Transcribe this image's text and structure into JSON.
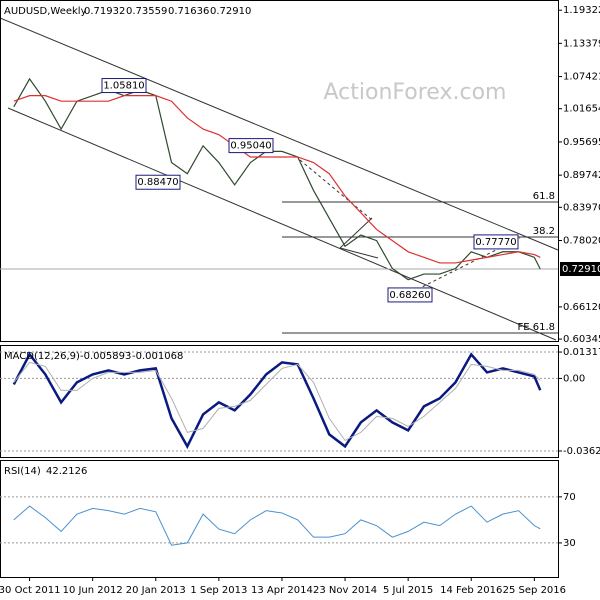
{
  "chart_data": [
    {
      "type": "line",
      "title": "AUDUSD,Weekly",
      "header_values": [
        0.71932,
        0.73559,
        0.71636,
        {
          "value": 0.7291,
          "label": "0.72910"
        }
      ],
      "watermark": "ActionForex.com",
      "xlim": [
        "2011-07-17",
        "2016-12-18"
      ],
      "x": [
        "2011-09-04",
        "2011-10-30",
        "2011-12-25",
        "2012-02-19",
        "2012-04-15",
        "2012-06-10",
        "2012-08-05",
        "2012-09-30",
        "2012-11-25",
        "2013-01-20",
        "2013-03-17",
        "2013-05-12",
        "2013-07-07",
        "2013-09-01",
        "2013-10-27",
        "2013-12-22",
        "2014-02-16",
        "2014-04-13",
        "2014-06-08",
        "2014-08-03",
        "2014-09-28",
        "2014-11-23",
        "2015-01-18",
        "2015-03-15",
        "2015-05-10",
        "2015-07-05",
        "2015-08-30",
        "2015-10-25",
        "2015-12-20",
        "2016-02-14",
        "2016-04-10",
        "2016-06-05",
        "2016-07-31",
        "2016-09-25",
        "2016-10-16"
      ],
      "series": [
        {
          "color": "#2f4a2f",
          "values": [
            1.02,
            1.07,
            1.03,
            0.98,
            1.03,
            1.04,
            1.05,
            1.04,
            1.05,
            1.04,
            0.92,
            0.9,
            0.95,
            0.92,
            0.88,
            0.92,
            0.94,
            0.94,
            0.93,
            0.87,
            0.82,
            0.77,
            0.79,
            0.78,
            0.73,
            0.71,
            0.72,
            0.72,
            0.73,
            0.76,
            0.75,
            0.76,
            0.76,
            0.75,
            0.7291
          ]
        },
        {
          "color": "#e03030",
          "values": [
            1.03,
            1.04,
            1.04,
            1.03,
            1.03,
            1.03,
            1.03,
            1.04,
            1.04,
            1.04,
            1.03,
            1.0,
            0.98,
            0.97,
            0.95,
            0.93,
            0.93,
            0.93,
            0.93,
            0.92,
            0.9,
            0.86,
            0.83,
            0.8,
            0.78,
            0.76,
            0.75,
            0.74,
            0.74,
            0.745,
            0.75,
            0.755,
            0.76,
            0.755,
            0.75
          ]
        }
      ],
      "ylim": [
        0.6,
        1.2115
      ],
      "yticks": [
        1.19322,
        1.13379,
        1.07421,
        1.01654,
        0.95695,
        0.89742,
        {
          "value": 0.8397,
          "label": "0.83970"
        },
        {
          "value": 0.7802,
          "label": "0.78020"
        },
        {
          "value": 0.6612,
          "label": "0.66120"
        },
        0.60345
      ],
      "last_price": {
        "value": 0.7291,
        "label": "0.72910"
      },
      "annotations": [
        {
          "value": 1.0581,
          "label": "1.05810"
        },
        {
          "value": 0.9504,
          "label": "0.95040"
        },
        {
          "value": 0.8847,
          "label": "0.88470"
        },
        {
          "value": 0.7777,
          "label": "0.77770"
        },
        {
          "value": 0.6826,
          "label": "0.68260"
        }
      ],
      "levels": [
        {
          "value": 0.8493,
          "label": "61.8"
        },
        {
          "value": 0.7865,
          "label": "38.2"
        },
        {
          "value": 0.6143,
          "label": "FE 61.8"
        }
      ]
    },
    {
      "type": "line",
      "title": "MACD(12,26,9)",
      "header_values": [
        -0.005893,
        -0.001068
      ],
      "xlim": [
        "2011-07-17",
        "2016-12-18"
      ],
      "x": [
        "2011-09-04",
        "2011-10-30",
        "2011-12-25",
        "2012-02-19",
        "2012-04-15",
        "2012-06-10",
        "2012-08-05",
        "2012-09-30",
        "2012-11-25",
        "2013-01-20",
        "2013-03-17",
        "2013-05-12",
        "2013-07-07",
        "2013-09-01",
        "2013-10-27",
        "2013-12-22",
        "2014-02-16",
        "2014-04-13",
        "2014-06-08",
        "2014-08-03",
        "2014-09-28",
        "2014-11-23",
        "2015-01-18",
        "2015-03-15",
        "2015-05-10",
        "2015-07-05",
        "2015-08-30",
        "2015-10-25",
        "2015-12-20",
        "2016-02-14",
        "2016-04-10",
        "2016-06-05",
        "2016-07-31",
        "2016-09-25",
        "2016-10-16"
      ],
      "series": [
        {
          "color": "#0a1a80",
          "values": [
            -0.003,
            0.012,
            0.002,
            -0.012,
            -0.002,
            0.002,
            0.004,
            0.002,
            0.004,
            0.005,
            -0.02,
            -0.034,
            -0.018,
            -0.012,
            -0.016,
            -0.008,
            0.002,
            0.008,
            0.007,
            -0.01,
            -0.028,
            -0.034,
            -0.022,
            -0.016,
            -0.022,
            -0.026,
            -0.014,
            -0.01,
            -0.002,
            0.012,
            0.003,
            0.005,
            0.003,
            0.001,
            -0.005893
          ]
        },
        {
          "color": "#b0b0b0",
          "values": [
            -0.002,
            0.008,
            0.006,
            -0.006,
            -0.006,
            0,
            0.003,
            0.003,
            0.003,
            0.004,
            -0.01,
            -0.027,
            -0.025,
            -0.015,
            -0.014,
            -0.011,
            -0.003,
            0.005,
            0.007,
            -0.002,
            -0.02,
            -0.031,
            -0.027,
            -0.019,
            -0.02,
            -0.024,
            -0.019,
            -0.012,
            -0.005,
            0.007,
            0.006,
            0.004,
            0.004,
            0.002,
            -0.001068
          ]
        }
      ],
      "ylim": [
        -0.0393,
        0.0167
      ],
      "yticks": [
        0.013175,
        {
          "value": 0,
          "label": "0.00"
        },
        -0.036292
      ],
      "grid": true
    },
    {
      "type": "line",
      "title": "RSI(14)",
      "header_values": [
        42.2126
      ],
      "xlim": [
        "2011-07-17",
        "2016-12-18"
      ],
      "x": [
        "2011-09-04",
        "2011-10-30",
        "2011-12-25",
        "2012-02-19",
        "2012-04-15",
        "2012-06-10",
        "2012-08-05",
        "2012-09-30",
        "2012-11-25",
        "2013-01-20",
        "2013-03-17",
        "2013-05-12",
        "2013-07-07",
        "2013-09-01",
        "2013-10-27",
        "2013-12-22",
        "2014-02-16",
        "2014-04-13",
        "2014-06-08",
        "2014-08-03",
        "2014-09-28",
        "2014-11-23",
        "2015-01-18",
        "2015-03-15",
        "2015-05-10",
        "2015-07-05",
        "2015-08-30",
        "2015-10-25",
        "2015-12-20",
        "2016-02-14",
        "2016-04-10",
        "2016-06-05",
        "2016-07-31",
        "2016-09-25",
        "2016-10-16"
      ],
      "series": [
        {
          "color": "#4a90d0",
          "values": [
            50,
            62,
            52,
            40,
            55,
            60,
            58,
            55,
            60,
            57,
            28,
            30,
            55,
            42,
            38,
            50,
            58,
            56,
            50,
            35,
            35,
            38,
            50,
            45,
            35,
            40,
            48,
            45,
            55,
            62,
            48,
            55,
            58,
            45,
            42.2126
          ]
        }
      ],
      "ylim": [
        0.4,
        102
      ],
      "yticks": [
        70,
        30
      ],
      "grid": true,
      "xticks": [
        {
          "value": "2011-10-30",
          "label": "30 Oct 2011"
        },
        {
          "value": "2012-06-10",
          "label": "10 Jun 2012"
        },
        {
          "value": "2013-01-20",
          "label": "20 Jan 2013"
        },
        {
          "value": "2013-09-01",
          "label": "1 Sep 2013"
        },
        {
          "value": "2014-04-13",
          "label": "13 Apr 2014"
        },
        {
          "value": "2014-11-23",
          "label": "23 Nov 2014"
        },
        {
          "value": "2015-07-05",
          "label": "5 Jul 2015"
        },
        {
          "value": "2016-02-14",
          "label": "14 Feb 2016"
        },
        {
          "value": "2016-09-25",
          "label": "25 Sep 2016"
        }
      ]
    }
  ]
}
